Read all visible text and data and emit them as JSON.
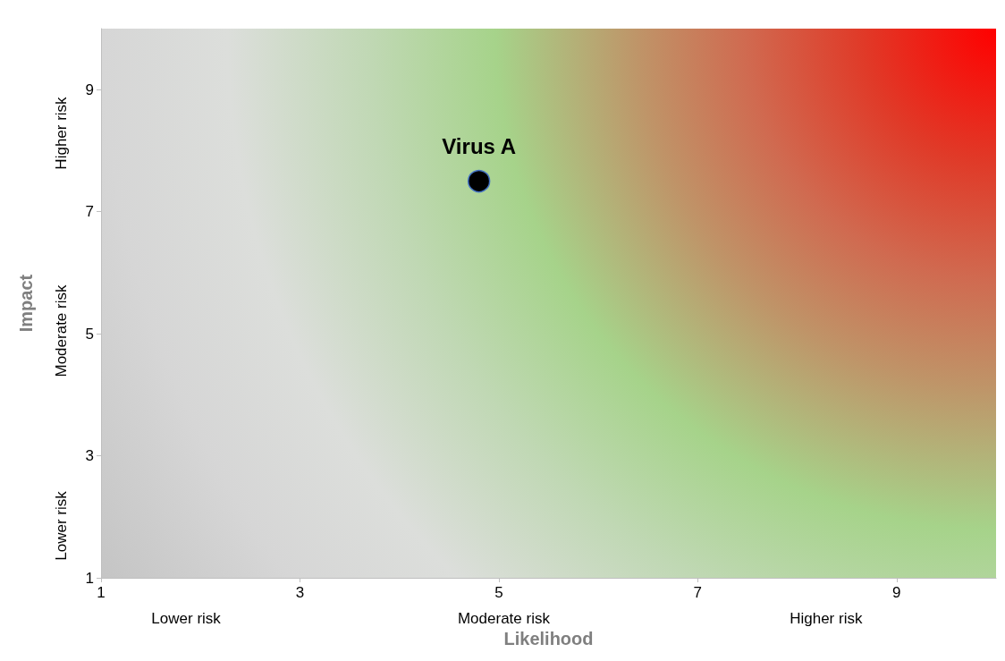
{
  "chart_data": {
    "type": "scatter",
    "xlabel": "Likelihood",
    "ylabel": "Impact",
    "x": [
      4.8
    ],
    "series": [
      {
        "name": "Virus A",
        "color": "#000000",
        "values": [
          7.5
        ]
      }
    ],
    "xlim": [
      1,
      10
    ],
    "xticks": [
      1,
      3,
      5,
      7,
      9
    ],
    "ylim": [
      1,
      10
    ],
    "yticks": [
      1,
      3,
      5,
      7,
      9
    ],
    "grid": false,
    "legend": false,
    "marker": "circle",
    "annotations": [
      "Lower risk",
      "Moderate risk",
      "Higher risk",
      "Lower risk",
      "Moderate risk",
      "Higher risk"
    ]
  }
}
